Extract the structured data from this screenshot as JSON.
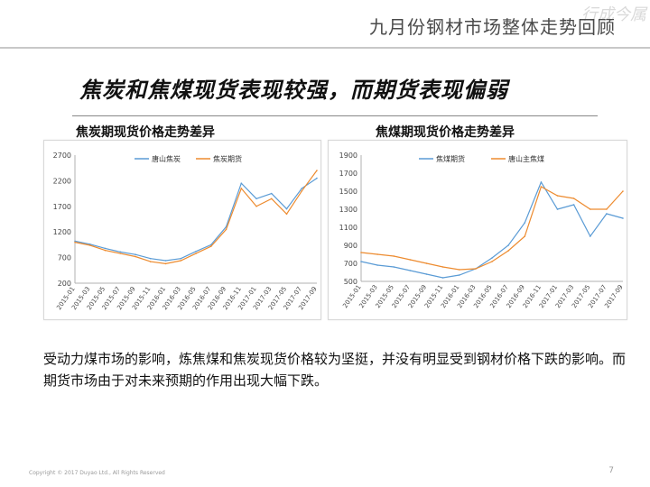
{
  "header": {
    "title": "九月份钢材市场整体走势回顾",
    "watermark": "行成今属"
  },
  "headline": "焦炭和焦煤现货表现较强，而期货表现偏弱",
  "body_text": "受动力煤市场的影响，炼焦煤和焦炭现货价格较为坚挺，并没有明显受到钢材价格下跌的影响。而期货市场由于对未来预期的作用出现大幅下跌。",
  "footer": {
    "copyright": "Copyright © 2017 Duyao Ltd., All Rights Reserved",
    "page": "7"
  },
  "colors": {
    "spot": "#5a9bd5",
    "futures": "#ed8b2f"
  },
  "chart_data": [
    {
      "type": "line",
      "title": "焦炭期现货价格走势差异",
      "y_ticks": [
        200,
        700,
        1200,
        1700,
        2200,
        2700
      ],
      "ylim": [
        200,
        2700
      ],
      "x_ticks": [
        "2015-01",
        "2015-03",
        "2015-05",
        "2015-07",
        "2015-09",
        "2015-11",
        "2016-01",
        "2016-03",
        "2016-05",
        "2016-07",
        "2016-09",
        "2016-11",
        "2017-01",
        "2017-03",
        "2017-05",
        "2017-07",
        "2017-09"
      ],
      "grid": false,
      "legend": "top",
      "x": [
        "2015-01",
        "2015-03",
        "2015-05",
        "2015-07",
        "2015-09",
        "2015-11",
        "2016-01",
        "2016-03",
        "2016-05",
        "2016-07",
        "2016-09",
        "2016-11",
        "2017-01",
        "2017-03",
        "2017-05",
        "2017-07",
        "2017-09"
      ],
      "series": [
        {
          "name": "唐山焦炭",
          "color": "#5a9bd5",
          "values": [
            1020,
            960,
            880,
            810,
            760,
            680,
            640,
            680,
            820,
            950,
            1300,
            2150,
            1850,
            1950,
            1650,
            2050,
            2250
          ]
        },
        {
          "name": "焦炭期货",
          "color": "#ed8b2f",
          "values": [
            1000,
            940,
            840,
            780,
            720,
            620,
            580,
            640,
            780,
            920,
            1250,
            2050,
            1700,
            1850,
            1550,
            2000,
            2400
          ]
        }
      ]
    },
    {
      "type": "line",
      "title": "焦煤期现货价格走势差异",
      "y_ticks": [
        500,
        700,
        900,
        1100,
        1300,
        1500,
        1700,
        1900
      ],
      "ylim": [
        500,
        1900
      ],
      "x_ticks": [
        "2015-01",
        "2015-03",
        "2015-05",
        "2015-07",
        "2015-09",
        "2015-11",
        "2016-01",
        "2016-03",
        "2016-05",
        "2016-07",
        "2016-09",
        "2016-11",
        "2017-01",
        "2017-03",
        "2017-05",
        "2017-07",
        "2017-09"
      ],
      "grid": false,
      "legend": "top",
      "x": [
        "2015-01",
        "2015-03",
        "2015-05",
        "2015-07",
        "2015-09",
        "2015-11",
        "2016-01",
        "2016-03",
        "2016-05",
        "2016-07",
        "2016-09",
        "2016-11",
        "2017-01",
        "2017-03",
        "2017-05",
        "2017-07",
        "2017-09"
      ],
      "series": [
        {
          "name": "焦煤期货",
          "color": "#5a9bd5",
          "values": [
            720,
            680,
            660,
            620,
            580,
            540,
            570,
            640,
            760,
            900,
            1150,
            1600,
            1300,
            1350,
            1000,
            1250,
            1200
          ]
        },
        {
          "name": "唐山主焦煤",
          "color": "#ed8b2f",
          "values": [
            820,
            800,
            780,
            740,
            700,
            660,
            630,
            640,
            720,
            840,
            1000,
            1550,
            1450,
            1420,
            1300,
            1300,
            1500
          ]
        }
      ]
    }
  ],
  "charts": [
    {
      "title": "焦炭期现货价格走势差异"
    },
    {
      "title": "焦煤期现货价格走势差异"
    }
  ]
}
